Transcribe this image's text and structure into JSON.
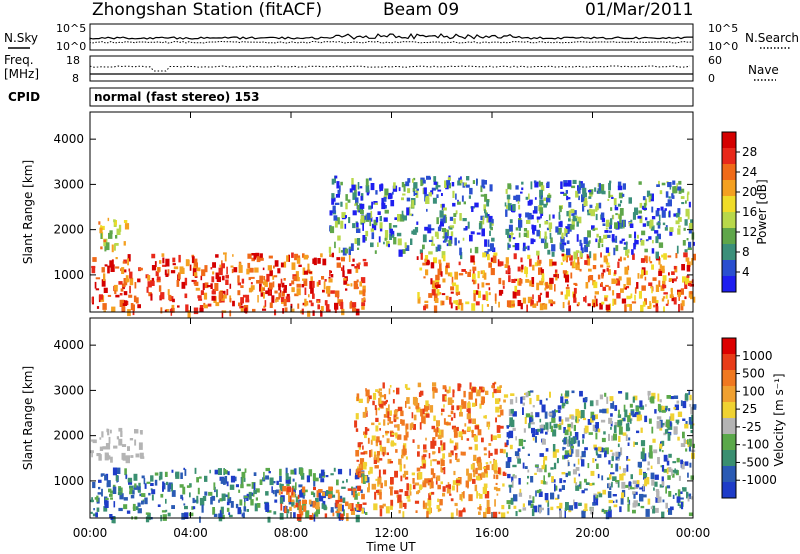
{
  "header": {
    "station": "Zhongshan Station (fitACF)",
    "beam": "Beam 09",
    "date": "01/Mar/2011"
  },
  "strip_panels": {
    "nsky_label": "N.Sky",
    "nsearch_label": "N.Search",
    "nsky_ticks": [
      "10^5",
      "10^0"
    ],
    "nsearch_ticks": [
      "10^5",
      "10^0"
    ],
    "freq_label_line1": "Freq.",
    "freq_label_line2": "[MHz]",
    "freq_ticks": [
      "18",
      "8"
    ],
    "nave_label": "Nave",
    "nave_ticks": [
      "60",
      "0"
    ],
    "cpid_label": "CPID",
    "cpid_text": "normal (fast stereo) 153"
  },
  "chart_data": [
    {
      "type": "heatmap",
      "title": "",
      "ylabel": "Slant Range [km]",
      "ylim": [
        180,
        4600
      ],
      "yticks": [
        "1000",
        "2000",
        "3000",
        "4000"
      ],
      "xlabel": "",
      "colorbar": {
        "label": "Power [dB]",
        "ticks": [
          "4",
          "8",
          "12",
          "16",
          "20",
          "24",
          "28"
        ],
        "colors": [
          "#1e1ef0",
          "#2a4fd0",
          "#3b8f7a",
          "#5fa64a",
          "#b8d84a",
          "#f0dc28",
          "#f4a020",
          "#f06a18",
          "#e8281a",
          "#d40000"
        ]
      },
      "echo_regions": [
        {
          "t_start": 0.0,
          "t_end": 10.9,
          "range_low": 200,
          "range_high": 1500,
          "dominant": "red/orange",
          "note": "strong near-range echoes"
        },
        {
          "t_start": 0.2,
          "t_end": 1.5,
          "range_low": 1600,
          "range_high": 2300,
          "dominant": "yellow/green"
        },
        {
          "t_start": 9.5,
          "t_end": 16.0,
          "range_low": 1500,
          "range_high": 3200,
          "dominant": "green/blue"
        },
        {
          "t_start": 13.0,
          "t_end": 24.0,
          "range_low": 300,
          "range_high": 1500,
          "dominant": "orange/red"
        },
        {
          "t_start": 16.5,
          "t_end": 24.0,
          "range_low": 1500,
          "range_high": 3100,
          "dominant": "green/blue"
        }
      ]
    },
    {
      "type": "heatmap",
      "title": "",
      "ylabel": "Slant Range [km]",
      "ylim": [
        180,
        4600
      ],
      "yticks": [
        "1000",
        "2000",
        "3000",
        "4000"
      ],
      "xlabel": "Time UT",
      "xticks": [
        "00:00",
        "04:00",
        "08:00",
        "12:00",
        "16:00",
        "20:00",
        "00:00"
      ],
      "colorbar": {
        "label": "Velocity [m s⁻¹]",
        "ticks": [
          "1000",
          "500",
          "100",
          "25",
          "-25",
          "-100",
          "-500",
          "-1000"
        ],
        "colors": [
          "#1e3cc8",
          "#2a5ab4",
          "#3a8f70",
          "#5aa84a",
          "#b4b4b4",
          "#f0d232",
          "#f0a030",
          "#f07820",
          "#e83c18",
          "#dc0000"
        ]
      },
      "echo_regions": [
        {
          "t_start": 0.0,
          "t_end": 11.0,
          "range_low": 200,
          "range_high": 1300,
          "dominant": "blue/green"
        },
        {
          "t_start": 0.0,
          "t_end": 2.0,
          "range_low": 1500,
          "range_high": 2200,
          "dominant": "grey"
        },
        {
          "t_start": 7.5,
          "t_end": 10.5,
          "range_low": 200,
          "range_high": 900,
          "dominant": "orange"
        },
        {
          "t_start": 10.5,
          "t_end": 16.5,
          "range_low": 300,
          "range_high": 3200,
          "dominant": "orange/yellow"
        },
        {
          "t_start": 16.5,
          "t_end": 24.0,
          "range_low": 300,
          "range_high": 3000,
          "dominant": "grey/green/blue"
        }
      ]
    }
  ]
}
